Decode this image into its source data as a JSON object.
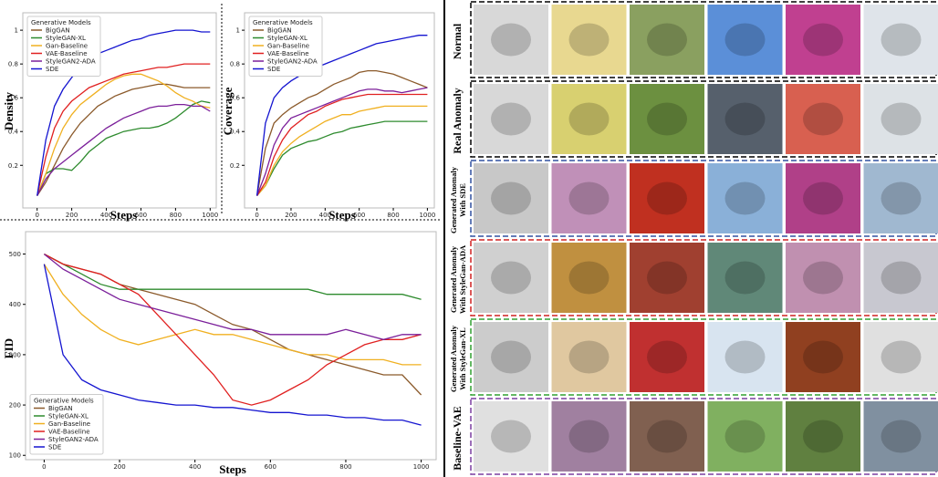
{
  "chart_data": [
    {
      "type": "line",
      "y_label": "Density",
      "x_label": "Steps",
      "legend_title": "Generative Models",
      "legend": "upper left",
      "x": [
        0,
        50,
        100,
        150,
        200,
        250,
        300,
        350,
        400,
        450,
        500,
        550,
        600,
        650,
        700,
        750,
        800,
        850,
        900,
        950,
        1000
      ],
      "xlim": [
        -30,
        1030
      ],
      "xticks": [
        0,
        200,
        400,
        600,
        800,
        1000
      ],
      "ylim": [
        -0.02,
        1.06
      ],
      "yticks": [
        0.2,
        0.4,
        0.6,
        0.8,
        1
      ],
      "series": [
        {
          "name": "BigGAN",
          "color": "#8b5a2b",
          "values": [
            0.02,
            0.1,
            0.2,
            0.3,
            0.38,
            0.45,
            0.5,
            0.55,
            0.58,
            0.61,
            0.63,
            0.65,
            0.66,
            0.67,
            0.68,
            0.68,
            0.67,
            0.66,
            0.66,
            0.66,
            0.66
          ]
        },
        {
          "name": "StyleGAN-XL",
          "color": "#2e8b2e",
          "values": [
            0.02,
            0.15,
            0.18,
            0.18,
            0.17,
            0.22,
            0.28,
            0.32,
            0.36,
            0.38,
            0.4,
            0.41,
            0.42,
            0.42,
            0.43,
            0.45,
            0.48,
            0.52,
            0.56,
            0.58,
            0.57
          ]
        },
        {
          "name": "Gan-Baseline",
          "color": "#f0b020",
          "values": [
            0.02,
            0.15,
            0.3,
            0.42,
            0.5,
            0.56,
            0.6,
            0.64,
            0.68,
            0.71,
            0.73,
            0.74,
            0.74,
            0.72,
            0.7,
            0.67,
            0.63,
            0.6,
            0.58,
            0.55,
            0.54
          ]
        },
        {
          "name": "VAE-Baseline",
          "color": "#e02020",
          "values": [
            0.02,
            0.25,
            0.42,
            0.52,
            0.58,
            0.62,
            0.66,
            0.68,
            0.7,
            0.72,
            0.74,
            0.75,
            0.76,
            0.77,
            0.78,
            0.78,
            0.79,
            0.8,
            0.8,
            0.8,
            0.8
          ]
        },
        {
          "name": "StyleGAN2-ADA",
          "color": "#7b1f9a",
          "values": [
            0.02,
            0.12,
            0.18,
            0.22,
            0.26,
            0.3,
            0.34,
            0.38,
            0.42,
            0.45,
            0.48,
            0.5,
            0.52,
            0.54,
            0.55,
            0.55,
            0.56,
            0.56,
            0.55,
            0.55,
            0.52
          ]
        },
        {
          "name": "SDE",
          "color": "#1414d0",
          "values": [
            0.02,
            0.35,
            0.55,
            0.65,
            0.72,
            0.78,
            0.82,
            0.86,
            0.88,
            0.9,
            0.92,
            0.94,
            0.95,
            0.97,
            0.98,
            0.99,
            1.0,
            1.0,
            1.0,
            0.99,
            0.99
          ]
        }
      ]
    },
    {
      "type": "line",
      "y_label": "Coverage",
      "x_label": "Steps",
      "legend_title": "Generative Models",
      "legend": "upper left",
      "x": [
        0,
        50,
        100,
        150,
        200,
        250,
        300,
        350,
        400,
        450,
        500,
        550,
        600,
        650,
        700,
        750,
        800,
        850,
        900,
        950,
        1000
      ],
      "xlim": [
        -30,
        1030
      ],
      "xticks": [
        0,
        200,
        400,
        600,
        800,
        1000
      ],
      "ylim": [
        -0.02,
        1.06
      ],
      "yticks": [
        0.2,
        0.4,
        0.6,
        0.8,
        1
      ],
      "series": [
        {
          "name": "BigGAN",
          "color": "#8b5a2b",
          "values": [
            0.02,
            0.3,
            0.45,
            0.5,
            0.54,
            0.57,
            0.6,
            0.62,
            0.65,
            0.68,
            0.7,
            0.72,
            0.75,
            0.76,
            0.76,
            0.75,
            0.74,
            0.72,
            0.7,
            0.68,
            0.66
          ]
        },
        {
          "name": "StyleGAN-XL",
          "color": "#2e8b2e",
          "values": [
            0.02,
            0.08,
            0.18,
            0.26,
            0.3,
            0.32,
            0.34,
            0.35,
            0.37,
            0.39,
            0.4,
            0.42,
            0.43,
            0.44,
            0.45,
            0.46,
            0.46,
            0.46,
            0.46,
            0.46,
            0.46
          ]
        },
        {
          "name": "Gan-Baseline",
          "color": "#f0b020",
          "values": [
            0.02,
            0.08,
            0.2,
            0.28,
            0.33,
            0.37,
            0.4,
            0.43,
            0.46,
            0.48,
            0.5,
            0.5,
            0.52,
            0.53,
            0.54,
            0.55,
            0.55,
            0.55,
            0.55,
            0.55,
            0.55
          ]
        },
        {
          "name": "VAE-Baseline",
          "color": "#e02020",
          "values": [
            0.02,
            0.1,
            0.25,
            0.35,
            0.42,
            0.46,
            0.5,
            0.52,
            0.55,
            0.57,
            0.59,
            0.6,
            0.61,
            0.62,
            0.62,
            0.62,
            0.62,
            0.62,
            0.62,
            0.62,
            0.62
          ]
        },
        {
          "name": "StyleGAN2-ADA",
          "color": "#7b1f9a",
          "values": [
            0.02,
            0.15,
            0.32,
            0.42,
            0.48,
            0.5,
            0.52,
            0.54,
            0.56,
            0.58,
            0.6,
            0.62,
            0.64,
            0.65,
            0.65,
            0.64,
            0.64,
            0.63,
            0.64,
            0.65,
            0.66
          ]
        },
        {
          "name": "SDE",
          "color": "#1414d0",
          "values": [
            0.02,
            0.45,
            0.6,
            0.66,
            0.7,
            0.73,
            0.76,
            0.78,
            0.8,
            0.82,
            0.84,
            0.86,
            0.88,
            0.9,
            0.92,
            0.93,
            0.94,
            0.95,
            0.96,
            0.97,
            0.97
          ]
        }
      ]
    },
    {
      "type": "line",
      "y_label": "FID",
      "x_label": "Steps",
      "legend_title": "Generative Models",
      "legend": "lower left",
      "x": [
        0,
        50,
        100,
        150,
        200,
        250,
        300,
        350,
        400,
        450,
        500,
        550,
        600,
        650,
        700,
        750,
        800,
        850,
        900,
        950,
        1000
      ],
      "xlim": [
        -30,
        1030
      ],
      "xticks": [
        0,
        200,
        400,
        600,
        800,
        1000
      ],
      "ylim": [
        95,
        530
      ],
      "yticks": [
        100,
        200,
        300,
        400,
        500
      ],
      "series": [
        {
          "name": "BigGAN",
          "color": "#8b5a2b",
          "values": [
            500,
            480,
            470,
            460,
            440,
            430,
            420,
            410,
            400,
            380,
            360,
            350,
            330,
            310,
            300,
            290,
            280,
            270,
            260,
            260,
            220
          ]
        },
        {
          "name": "StyleGAN-XL",
          "color": "#2e8b2e",
          "values": [
            500,
            480,
            460,
            440,
            430,
            430,
            430,
            430,
            430,
            430,
            430,
            430,
            430,
            430,
            430,
            420,
            420,
            420,
            420,
            420,
            410
          ]
        },
        {
          "name": "Gan-Baseline",
          "color": "#f0b020",
          "values": [
            480,
            420,
            380,
            350,
            330,
            320,
            330,
            340,
            350,
            340,
            340,
            330,
            320,
            310,
            300,
            300,
            290,
            290,
            290,
            280,
            280
          ]
        },
        {
          "name": "VAE-Baseline",
          "color": "#e02020",
          "values": [
            500,
            480,
            470,
            460,
            440,
            420,
            380,
            340,
            300,
            260,
            210,
            200,
            210,
            230,
            250,
            280,
            300,
            320,
            330,
            330,
            340
          ]
        },
        {
          "name": "StyleGAN2-ADA",
          "color": "#7b1f9a",
          "values": [
            500,
            470,
            450,
            430,
            410,
            400,
            390,
            380,
            370,
            360,
            350,
            350,
            340,
            340,
            340,
            340,
            350,
            340,
            330,
            340,
            340
          ]
        },
        {
          "name": "SDE",
          "color": "#1414d0",
          "values": [
            480,
            300,
            250,
            230,
            220,
            210,
            205,
            200,
            200,
            195,
            195,
            190,
            185,
            185,
            180,
            180,
            175,
            175,
            170,
            170,
            160
          ]
        }
      ]
    }
  ],
  "image_grid": {
    "row_labels": [
      [
        "Normal"
      ],
      [
        "Real Anomaly"
      ],
      [
        "Generated Anomaly",
        "With SDE"
      ],
      [
        "Generated Anomaly",
        "With StyleGan-ADA"
      ],
      [
        "Generated Anomaly",
        "With StyleGan-XL"
      ],
      [
        "Baseline-VAE"
      ]
    ]
  }
}
